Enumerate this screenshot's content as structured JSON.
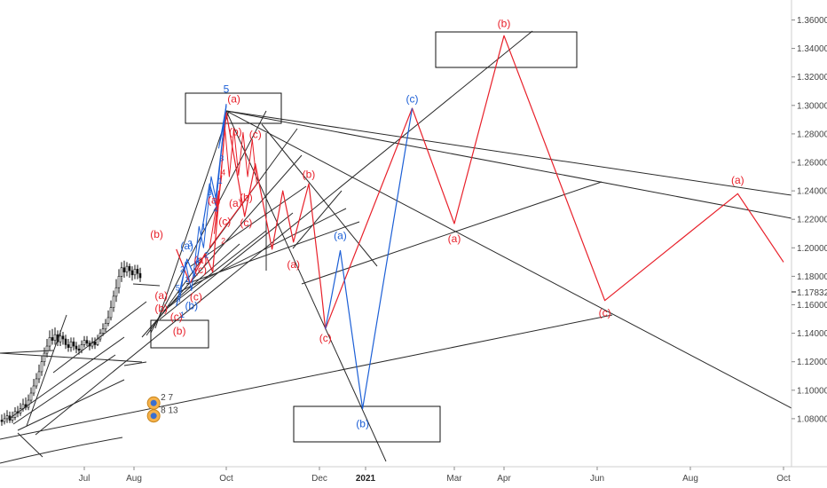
{
  "chart_data": {
    "type": "line",
    "title": "",
    "xlabel": "",
    "ylabel": "",
    "ylim": [
      1.065,
      1.372
    ],
    "y_ticks": [
      "1.36000",
      "1.34000",
      "1.32000",
      "1.30000",
      "1.28000",
      "1.26000",
      "1.24000",
      "1.22000",
      "1.20000",
      "1.18000",
      "1.16000",
      "1.14000",
      "1.12000",
      "1.10000",
      "1.08000"
    ],
    "price_label": "1.17832",
    "x_ticks": [
      {
        "label": "Jul",
        "date": "2020-07-01",
        "bold": false
      },
      {
        "label": "Aug",
        "date": "2020-08-01",
        "bold": false
      },
      {
        "label": "Oct",
        "date": "2020-10-01",
        "bold": false
      },
      {
        "label": "Dec",
        "date": "2020-12-01",
        "bold": false
      },
      {
        "label": "2021",
        "date": "2021-01-01",
        "bold": true
      },
      {
        "label": "Mar",
        "date": "2021-03-01",
        "bold": false
      },
      {
        "label": "Apr",
        "date": "2021-04-01",
        "bold": false
      },
      {
        "label": "Jun",
        "date": "2021-06-01",
        "bold": false
      },
      {
        "label": "Aug",
        "date": "2021-08-01",
        "bold": false
      },
      {
        "label": "Oct",
        "date": "2021-10-01",
        "bold": false
      }
    ],
    "series": [
      {
        "color": "#e8202a",
        "points": [
          [
            "2020-08-29",
            1.199
          ],
          [
            "2020-09-07",
            1.175
          ],
          [
            "2020-09-17",
            1.196
          ],
          [
            "2020-09-22",
            1.183
          ],
          [
            "2020-10-01",
            1.295
          ],
          [
            "2020-10-13",
            1.222
          ],
          [
            "2020-10-20",
            1.259
          ],
          [
            "2020-10-31",
            1.199
          ],
          [
            "2020-11-07",
            1.24
          ],
          [
            "2020-11-14",
            1.204
          ],
          [
            "2020-11-24",
            1.245
          ],
          [
            "2020-12-02",
            1.172
          ],
          [
            "2020-12-05",
            1.143
          ],
          [
            "2021-02-01",
            1.298
          ],
          [
            "2021-03-01",
            1.217
          ],
          [
            "2021-04-01",
            1.349
          ],
          [
            "2021-06-06",
            1.163
          ],
          [
            "2021-09-01",
            1.238
          ],
          [
            "2021-10-01",
            1.19
          ]
        ]
      },
      {
        "color": "#1c5fd6",
        "points": [
          [
            "2020-12-05",
            1.143
          ],
          [
            "2020-12-15",
            1.198
          ],
          [
            "2020-12-30",
            1.087
          ],
          [
            "2021-02-01",
            1.298
          ]
        ]
      },
      {
        "color": "#1c5fd6",
        "points": [
          [
            "2020-08-29",
            1.159
          ],
          [
            "2020-09-05",
            1.192
          ],
          [
            "2020-09-10",
            1.18
          ],
          [
            "2020-09-20",
            1.245
          ],
          [
            "2020-09-24",
            1.23
          ],
          [
            "2020-10-01",
            1.301
          ]
        ]
      }
    ],
    "candles": [
      [
        1.079,
        1.078,
        1.083,
        1.075
      ],
      [
        1.078,
        1.08,
        1.084,
        1.076
      ],
      [
        1.08,
        1.082,
        1.086,
        1.077
      ],
      [
        1.082,
        1.079,
        1.085,
        1.077
      ],
      [
        1.079,
        1.081,
        1.085,
        1.077
      ],
      [
        1.081,
        1.085,
        1.088,
        1.079
      ],
      [
        1.085,
        1.084,
        1.089,
        1.081
      ],
      [
        1.084,
        1.087,
        1.091,
        1.082
      ],
      [
        1.087,
        1.09,
        1.094,
        1.085
      ],
      [
        1.09,
        1.088,
        1.095,
        1.086
      ],
      [
        1.088,
        1.093,
        1.097,
        1.086
      ],
      [
        1.093,
        1.098,
        1.102,
        1.091
      ],
      [
        1.098,
        1.103,
        1.108,
        1.096
      ],
      [
        1.103,
        1.108,
        1.112,
        1.101
      ],
      [
        1.108,
        1.113,
        1.118,
        1.105
      ],
      [
        1.113,
        1.12,
        1.124,
        1.11
      ],
      [
        1.12,
        1.126,
        1.13,
        1.117
      ],
      [
        1.126,
        1.131,
        1.136,
        1.123
      ],
      [
        1.131,
        1.137,
        1.142,
        1.128
      ],
      [
        1.137,
        1.135,
        1.143,
        1.132
      ],
      [
        1.135,
        1.139,
        1.144,
        1.132
      ],
      [
        1.139,
        1.134,
        1.142,
        1.131
      ],
      [
        1.134,
        1.138,
        1.142,
        1.131
      ],
      [
        1.138,
        1.136,
        1.141,
        1.132
      ],
      [
        1.136,
        1.132,
        1.139,
        1.129
      ],
      [
        1.132,
        1.13,
        1.136,
        1.127
      ],
      [
        1.13,
        1.134,
        1.137,
        1.127
      ],
      [
        1.134,
        1.131,
        1.137,
        1.128
      ],
      [
        1.131,
        1.129,
        1.134,
        1.126
      ],
      [
        1.129,
        1.128,
        1.132,
        1.125
      ],
      [
        1.128,
        1.132,
        1.135,
        1.126
      ],
      [
        1.132,
        1.135,
        1.138,
        1.13
      ],
      [
        1.135,
        1.133,
        1.138,
        1.131
      ],
      [
        1.133,
        1.131,
        1.135,
        1.128
      ],
      [
        1.131,
        1.134,
        1.137,
        1.129
      ],
      [
        1.134,
        1.132,
        1.137,
        1.129
      ],
      [
        1.132,
        1.136,
        1.139,
        1.131
      ],
      [
        1.136,
        1.14,
        1.143,
        1.134
      ],
      [
        1.14,
        1.143,
        1.147,
        1.138
      ],
      [
        1.143,
        1.147,
        1.15,
        1.141
      ],
      [
        1.147,
        1.151,
        1.156,
        1.145
      ],
      [
        1.151,
        1.158,
        1.163,
        1.149
      ],
      [
        1.158,
        1.166,
        1.17,
        1.155
      ],
      [
        1.166,
        1.172,
        1.178,
        1.162
      ],
      [
        1.172,
        1.18,
        1.185,
        1.168
      ],
      [
        1.18,
        1.186,
        1.19,
        1.176
      ],
      [
        1.186,
        1.183,
        1.191,
        1.179
      ],
      [
        1.183,
        1.187,
        1.19,
        1.18
      ],
      [
        1.187,
        1.184,
        1.189,
        1.179
      ],
      [
        1.184,
        1.181,
        1.187,
        1.177
      ],
      [
        1.181,
        1.185,
        1.188,
        1.178
      ],
      [
        1.185,
        1.182,
        1.188,
        1.178
      ],
      [
        1.182,
        1.179,
        1.186,
        1.176
      ]
    ],
    "wave_labels": [
      {
        "text": "(b)",
        "date": "2021-04-01",
        "y": 1.355,
        "color": "red"
      },
      {
        "text": "(a)",
        "date": "2020-10-06",
        "y": 1.302,
        "color": "red"
      },
      {
        "text": "5",
        "date": "2020-10-01",
        "y": 1.309,
        "color": "blue"
      },
      {
        "text": "(c)",
        "date": "2021-02-01",
        "y": 1.302,
        "color": "blue"
      },
      {
        "text": "(b)",
        "date": "2020-10-07",
        "y": 1.279,
        "color": "red"
      },
      {
        "text": "(c)",
        "date": "2020-10-20",
        "y": 1.277,
        "color": "red"
      },
      {
        "text": "(a)",
        "date": "2021-09-01",
        "y": 1.245,
        "color": "red"
      },
      {
        "text": "(b)",
        "date": "2020-11-24",
        "y": 1.249,
        "color": "red"
      },
      {
        "text": "(b)",
        "date": "2020-10-14",
        "y": 1.233,
        "color": "red"
      },
      {
        "text": "(a)",
        "date": "2020-10-07",
        "y": 1.229,
        "color": "red"
      },
      {
        "text": "(c)",
        "date": "2020-10-14",
        "y": 1.215,
        "color": "red"
      },
      {
        "text": "(a)",
        "date": "2021-03-01",
        "y": 1.204,
        "color": "red"
      },
      {
        "text": "(a)",
        "date": "2020-12-15",
        "y": 1.206,
        "color": "blue"
      },
      {
        "text": "(a)",
        "date": "2020-11-14",
        "y": 1.186,
        "color": "red"
      },
      {
        "text": "(c)",
        "date": "2021-06-06",
        "y": 1.152,
        "color": "red"
      },
      {
        "text": "(b)",
        "date": "2020-08-16",
        "y": 1.207,
        "color": "red"
      },
      {
        "text": "(c)",
        "date": "2020-12-05",
        "y": 1.134,
        "color": "red"
      },
      {
        "text": "(b)",
        "date": "2020-12-30",
        "y": 1.074,
        "color": "blue"
      },
      {
        "text": "(b)",
        "date": "2020-09-08",
        "y": 1.157,
        "color": "blue"
      },
      {
        "text": "(c)",
        "date": "2020-08-29",
        "y": 1.149,
        "color": "red"
      },
      {
        "text": "(b)",
        "date": "2020-08-31",
        "y": 1.139,
        "color": "red"
      },
      {
        "text": "(a)",
        "date": "2020-08-19",
        "y": 1.164,
        "color": "red"
      },
      {
        "text": "(b)",
        "date": "2020-08-19",
        "y": 1.155,
        "color": "red"
      },
      {
        "text": "(c)",
        "date": "2020-09-14",
        "y": 1.182,
        "color": "red"
      },
      {
        "text": "(a)",
        "date": "2020-09-14",
        "y": 1.189,
        "color": "red"
      },
      {
        "text": "(c)",
        "date": "2020-09-11",
        "y": 1.163,
        "color": "red"
      },
      {
        "text": "(a)",
        "date": "2020-09-05",
        "y": 1.199,
        "color": "blue"
      },
      {
        "text": "(a)",
        "date": "2020-09-23",
        "y": 1.231,
        "color": "red"
      },
      {
        "text": "(c)",
        "date": "2020-09-30",
        "y": 1.216,
        "color": "red"
      }
    ],
    "small_wave_labels": [
      {
        "text": "1",
        "date": "2020-09-05",
        "y": 1.176,
        "color": "blue"
      },
      {
        "text": "2",
        "date": "2020-09-02",
        "y": 1.183,
        "color": "blue"
      },
      {
        "text": "3",
        "date": "2020-09-07",
        "y": 1.201,
        "color": "blue"
      },
      {
        "text": "4",
        "date": "2020-09-12",
        "y": 1.189,
        "color": "blue"
      },
      {
        "text": "5",
        "date": "2020-08-30",
        "y": 1.17,
        "color": "blue"
      },
      {
        "text": "1",
        "date": "2020-09-16",
        "y": 1.213,
        "color": "blue"
      },
      {
        "text": "2",
        "date": "2020-09-18",
        "y": 1.193,
        "color": "blue"
      },
      {
        "text": "3",
        "date": "2020-09-20",
        "y": 1.237,
        "color": "blue"
      },
      {
        "text": "4",
        "date": "2020-09-24",
        "y": 1.225,
        "color": "blue"
      },
      {
        "text": "1",
        "date": "2020-09-27",
        "y": 1.245,
        "color": "blue"
      },
      {
        "text": "3",
        "date": "2020-09-28",
        "y": 1.261,
        "color": "blue"
      },
      {
        "text": "4",
        "date": "2020-09-29",
        "y": 1.251,
        "color": "red"
      },
      {
        "text": "2",
        "date": "2020-09-29",
        "y": 1.203,
        "color": "red"
      },
      {
        "text": "1",
        "date": "2020-09-02",
        "y": 1.151,
        "color": "blue"
      }
    ],
    "event_icons": [
      {
        "counts": "2 7",
        "date": "2020-08-14",
        "y": 1.091
      },
      {
        "counts": "8 13",
        "date": "2020-08-14",
        "y": 1.082
      }
    ]
  }
}
